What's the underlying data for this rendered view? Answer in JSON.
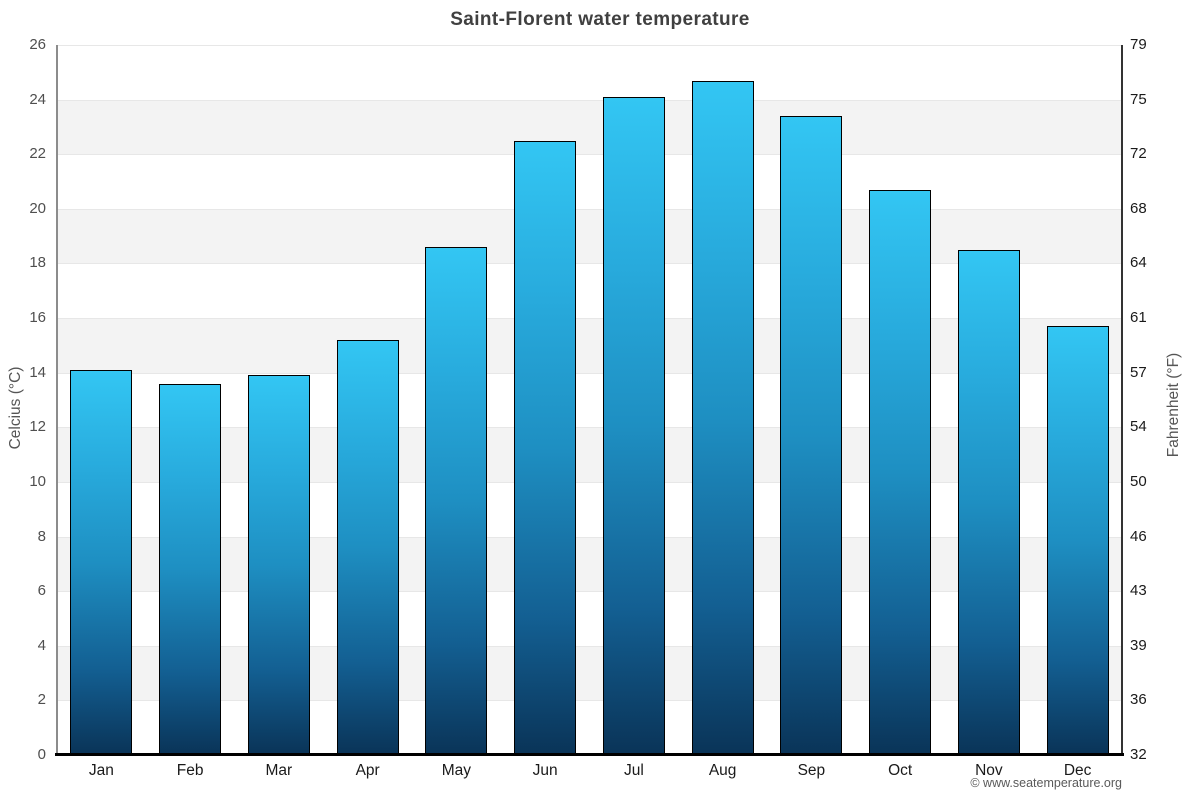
{
  "chart": {
    "title": "Saint-Florent water temperature",
    "ylabel_left": "Celcius (°C)",
    "ylabel_right": "Fahrenheit (°F)",
    "watermark": "© www.seatemperature.org"
  },
  "chart_data": {
    "type": "bar",
    "title": "Saint-Florent water temperature",
    "categories": [
      "Jan",
      "Feb",
      "Mar",
      "Apr",
      "May",
      "Jun",
      "Jul",
      "Aug",
      "Sep",
      "Oct",
      "Nov",
      "Dec"
    ],
    "values": [
      14.1,
      13.6,
      13.9,
      15.2,
      18.6,
      22.5,
      24.1,
      24.7,
      23.4,
      20.7,
      18.5,
      15.7
    ],
    "xlabel": "",
    "ylabel": "Celcius (°C)",
    "ylabel_right": "Fahrenheit (°F)",
    "ylim": [
      0,
      26
    ],
    "ytick_step_celsius": 2,
    "yticks_celsius": [
      0,
      2,
      4,
      6,
      8,
      10,
      12,
      14,
      16,
      18,
      20,
      22,
      24,
      26
    ],
    "yticks_fahrenheit": [
      32,
      36,
      39,
      43,
      46,
      50,
      54,
      57,
      61,
      64,
      68,
      72,
      75,
      79
    ],
    "grid": "horizontal alternating bands",
    "legend": false,
    "band_color_gray": "#f3f3f3",
    "band_color_white": "#ffffff",
    "gridline_color": "#e7e7e7",
    "bar_color_top": "#33c6f3",
    "bar_color_bottom": "#0a3458",
    "bar_border_color": "#000000",
    "watermark": "© www.seatemperature.org"
  }
}
